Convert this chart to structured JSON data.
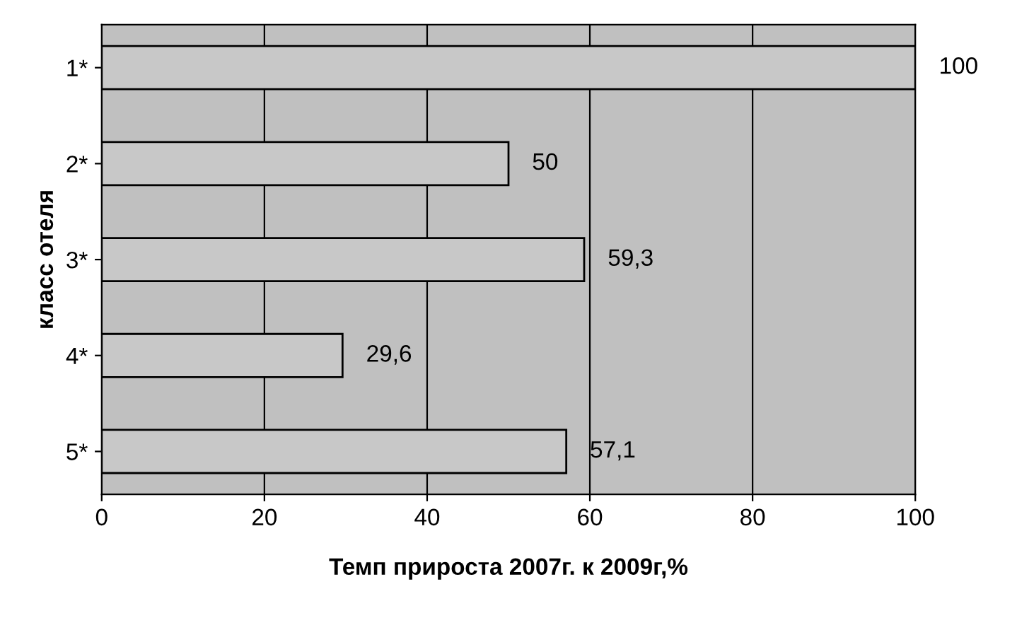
{
  "chart_data": {
    "type": "bar",
    "orientation": "horizontal",
    "xlabel": "Темп прироста 2007г. к 2009г,%",
    "ylabel": "класс отеля",
    "categories": [
      "1*",
      "2*",
      "3*",
      "4*",
      "5*"
    ],
    "values": [
      100,
      50,
      59.3,
      29.6,
      57.1
    ],
    "color": "#c8c8c8",
    "xlim": [
      0,
      100
    ],
    "value_labels": [
      "100",
      "50",
      "59,3",
      "29,6",
      "57,1"
    ],
    "xticks": [
      0,
      20,
      40,
      60,
      80,
      100
    ],
    "grid": "x",
    "legend": false
  }
}
